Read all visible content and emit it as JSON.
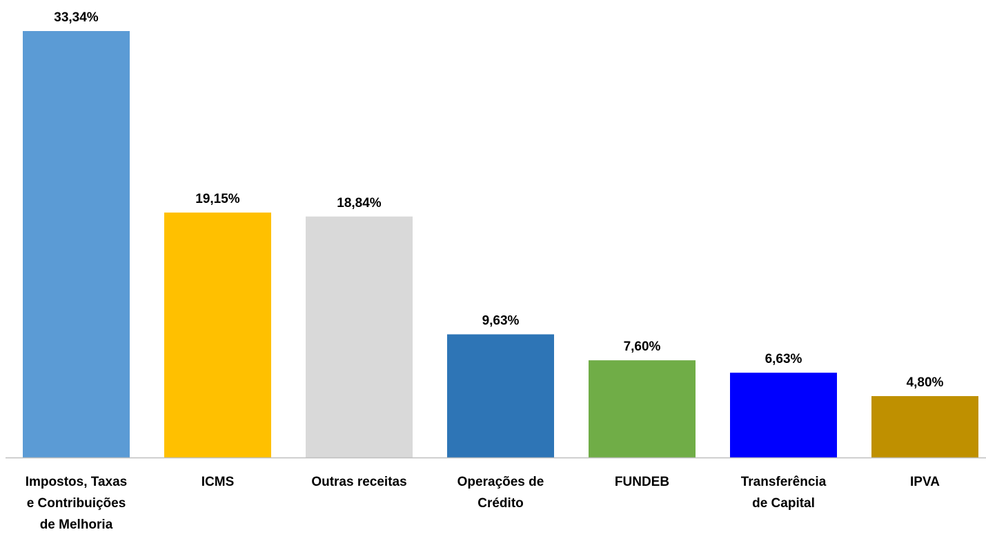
{
  "chart_data": {
    "type": "bar",
    "categories": [
      "Impostos, Taxas\ne Contribuições\nde Melhoria",
      "ICMS",
      "Outras receitas",
      "Operações de\nCrédito",
      "FUNDEB",
      "Transferência\nde Capital",
      "IPVA"
    ],
    "values": [
      33.34,
      19.15,
      18.84,
      9.63,
      7.6,
      6.63,
      4.8
    ],
    "value_labels": [
      "33,34%",
      "19,15%",
      "18,84%",
      "9,63%",
      "7,60%",
      "6,63%",
      "4,80%"
    ],
    "colors": [
      "#5b9bd5",
      "#ffc000",
      "#d9d9d9",
      "#2e75b6",
      "#70ad47",
      "#0000ff",
      "#bf9000"
    ]
  }
}
